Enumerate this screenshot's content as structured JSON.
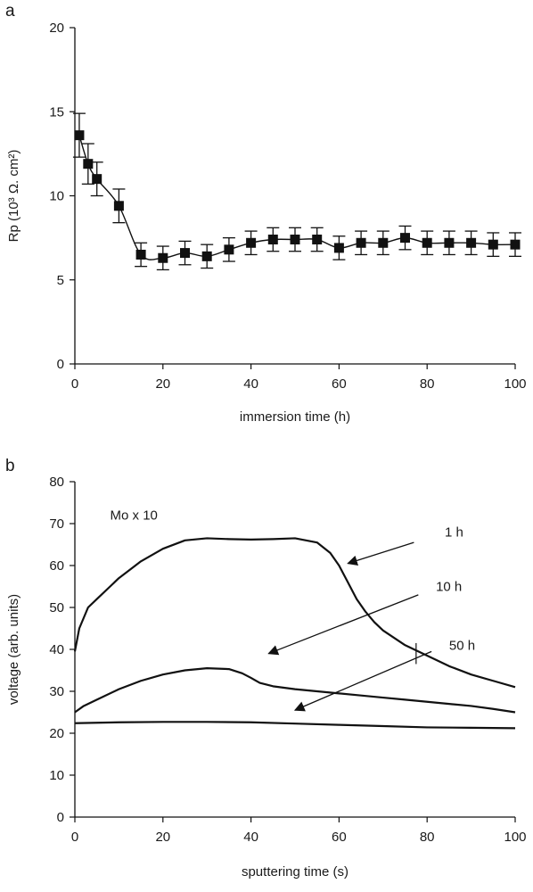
{
  "chart_data": [
    {
      "panel": "a",
      "type": "line",
      "xlabel": "immersion time (h)",
      "ylabel": "Rp (10³ Ω. cm²)",
      "xlim": [
        0,
        100
      ],
      "ylim": [
        0,
        20
      ],
      "xticks": [
        0,
        20,
        40,
        60,
        80,
        100
      ],
      "yticks": [
        0,
        5,
        10,
        15,
        20
      ],
      "grid": false,
      "markers": "filled-square",
      "error_bars": true,
      "x": [
        1,
        3,
        5,
        10,
        15,
        20,
        25,
        30,
        35,
        40,
        45,
        50,
        55,
        60,
        65,
        70,
        75,
        80,
        85,
        90,
        95,
        100
      ],
      "y": [
        13.6,
        11.9,
        11.0,
        9.4,
        6.5,
        6.3,
        6.6,
        6.4,
        6.8,
        7.2,
        7.4,
        7.4,
        7.4,
        6.9,
        7.2,
        7.2,
        7.5,
        7.2,
        7.2,
        7.2,
        7.1,
        7.1
      ],
      "y_error": [
        1.3,
        1.2,
        1.0,
        1.0,
        0.7,
        0.7,
        0.7,
        0.7,
        0.7,
        0.7,
        0.7,
        0.7,
        0.7,
        0.7,
        0.7,
        0.7,
        0.7,
        0.7,
        0.7,
        0.7,
        0.7,
        0.7
      ]
    },
    {
      "panel": "b",
      "type": "line",
      "xlabel": "sputtering time (s)",
      "ylabel": "voltage (arb. units)",
      "xlim": [
        0,
        100
      ],
      "ylim": [
        0,
        80
      ],
      "xticks": [
        0,
        20,
        40,
        60,
        80,
        100
      ],
      "yticks": [
        0,
        10,
        20,
        30,
        40,
        50,
        60,
        70,
        80
      ],
      "grid": false,
      "annotation": "Mo x 10",
      "series": [
        {
          "name": "1 h",
          "x": [
            0,
            1,
            3,
            5,
            8,
            10,
            15,
            20,
            25,
            30,
            35,
            40,
            45,
            50,
            55,
            58,
            60,
            62,
            64,
            66,
            68,
            70,
            75,
            80,
            85,
            90,
            95,
            100
          ],
          "y": [
            39.5,
            45,
            50,
            52,
            55,
            57,
            61,
            64,
            66,
            66.5,
            66.3,
            66.2,
            66.3,
            66.5,
            65.5,
            63,
            60,
            56,
            52,
            49,
            46.5,
            44.5,
            41,
            38.5,
            36,
            34,
            32.5,
            31
          ]
        },
        {
          "name": "10 h",
          "x": [
            0,
            2,
            5,
            10,
            15,
            20,
            25,
            30,
            35,
            38,
            40,
            42,
            45,
            50,
            55,
            60,
            65,
            70,
            75,
            80,
            85,
            90,
            95,
            100
          ],
          "y": [
            25,
            26.5,
            28,
            30.5,
            32.5,
            34,
            35,
            35.5,
            35.3,
            34.3,
            33.2,
            32,
            31.2,
            30.5,
            30,
            29.5,
            29,
            28.5,
            28,
            27.5,
            27,
            26.5,
            25.8,
            25
          ]
        },
        {
          "name": "50 h",
          "x": [
            0,
            10,
            20,
            30,
            40,
            50,
            60,
            70,
            80,
            90,
            100
          ],
          "y": [
            22.4,
            22.6,
            22.7,
            22.7,
            22.6,
            22.3,
            22,
            21.7,
            21.4,
            21.3,
            21.2
          ]
        }
      ],
      "arrows": [
        {
          "label": "1 h",
          "label_at": [
            84,
            68
          ],
          "from": [
            77,
            65.5
          ],
          "to": [
            62,
            60.5
          ]
        },
        {
          "label": "10 h",
          "label_at": [
            82,
            55
          ],
          "from": [
            78,
            53
          ],
          "to": [
            44,
            39
          ]
        },
        {
          "label": "50 h",
          "label_at": [
            85,
            41
          ],
          "from": [
            81,
            39.5
          ],
          "to": [
            50,
            25.5
          ]
        }
      ]
    }
  ]
}
